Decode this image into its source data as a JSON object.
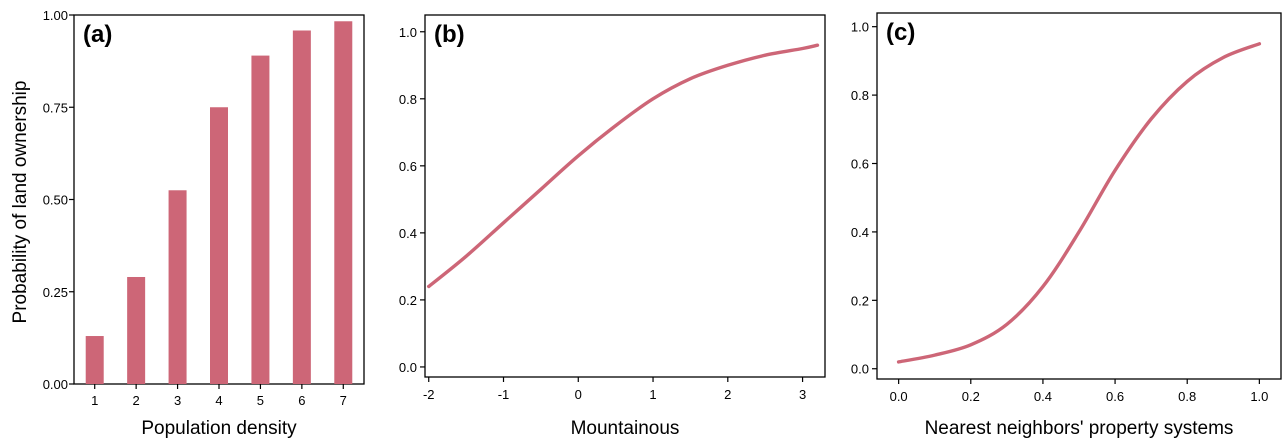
{
  "colors": {
    "series": "#cd6677",
    "axis": "#000000",
    "background": "#ffffff"
  },
  "shared_ylabel": "Probability of land ownership",
  "chart_data": [
    {
      "panel": "(a)",
      "type": "bar",
      "xlabel": "Population density",
      "ylabel": "Probability of land ownership",
      "categories": [
        "1",
        "2",
        "3",
        "4",
        "5",
        "6",
        "7"
      ],
      "values": [
        0.13,
        0.29,
        0.525,
        0.75,
        0.89,
        0.958,
        0.983
      ],
      "ylim": [
        0,
        1
      ],
      "yticks": [
        0,
        0.25,
        0.5,
        0.75,
        1
      ],
      "ytick_labels": [
        "0.00",
        "0.25",
        "0.50",
        "0.75",
        "1.00"
      ],
      "grid": false
    },
    {
      "panel": "(b)",
      "type": "line",
      "xlabel": "Mountainous",
      "ylabel": "",
      "x": [
        -2.0,
        -1.5,
        -1.0,
        -0.5,
        0.0,
        0.5,
        1.0,
        1.5,
        2.0,
        2.5,
        3.0,
        3.2
      ],
      "y": [
        0.24,
        0.33,
        0.43,
        0.53,
        0.63,
        0.72,
        0.8,
        0.86,
        0.9,
        0.93,
        0.95,
        0.96
      ],
      "xlim": [
        -2.05,
        3.3
      ],
      "ylim": [
        -0.03,
        1.05
      ],
      "xticks": [
        -2,
        -1,
        0,
        1,
        2,
        3
      ],
      "xtick_labels": [
        "-2",
        "-1",
        "0",
        "1",
        "2",
        "3"
      ],
      "yticks": [
        0,
        0.2,
        0.4,
        0.6,
        0.8,
        1.0
      ],
      "ytick_labels": [
        "0.0",
        "0.2",
        "0.4",
        "0.6",
        "0.8",
        "1.0"
      ],
      "grid": false
    },
    {
      "panel": "(c)",
      "type": "line",
      "xlabel": "Nearest neighbors' property systems",
      "ylabel": "",
      "x": [
        0.0,
        0.1,
        0.2,
        0.3,
        0.4,
        0.5,
        0.6,
        0.7,
        0.8,
        0.9,
        1.0
      ],
      "y": [
        0.02,
        0.04,
        0.07,
        0.13,
        0.24,
        0.4,
        0.58,
        0.73,
        0.84,
        0.91,
        0.95
      ],
      "xlim": [
        -0.06,
        1.06
      ],
      "ylim": [
        -0.03,
        1.04
      ],
      "xticks": [
        0,
        0.2,
        0.4,
        0.6,
        0.8,
        1.0
      ],
      "xtick_labels": [
        "0.0",
        "0.2",
        "0.4",
        "0.6",
        "0.8",
        "1.0"
      ],
      "yticks": [
        0,
        0.2,
        0.4,
        0.6,
        0.8,
        1.0
      ],
      "ytick_labels": [
        "0.0",
        "0.2",
        "0.4",
        "0.6",
        "0.8",
        "1.0"
      ],
      "grid": false
    }
  ]
}
